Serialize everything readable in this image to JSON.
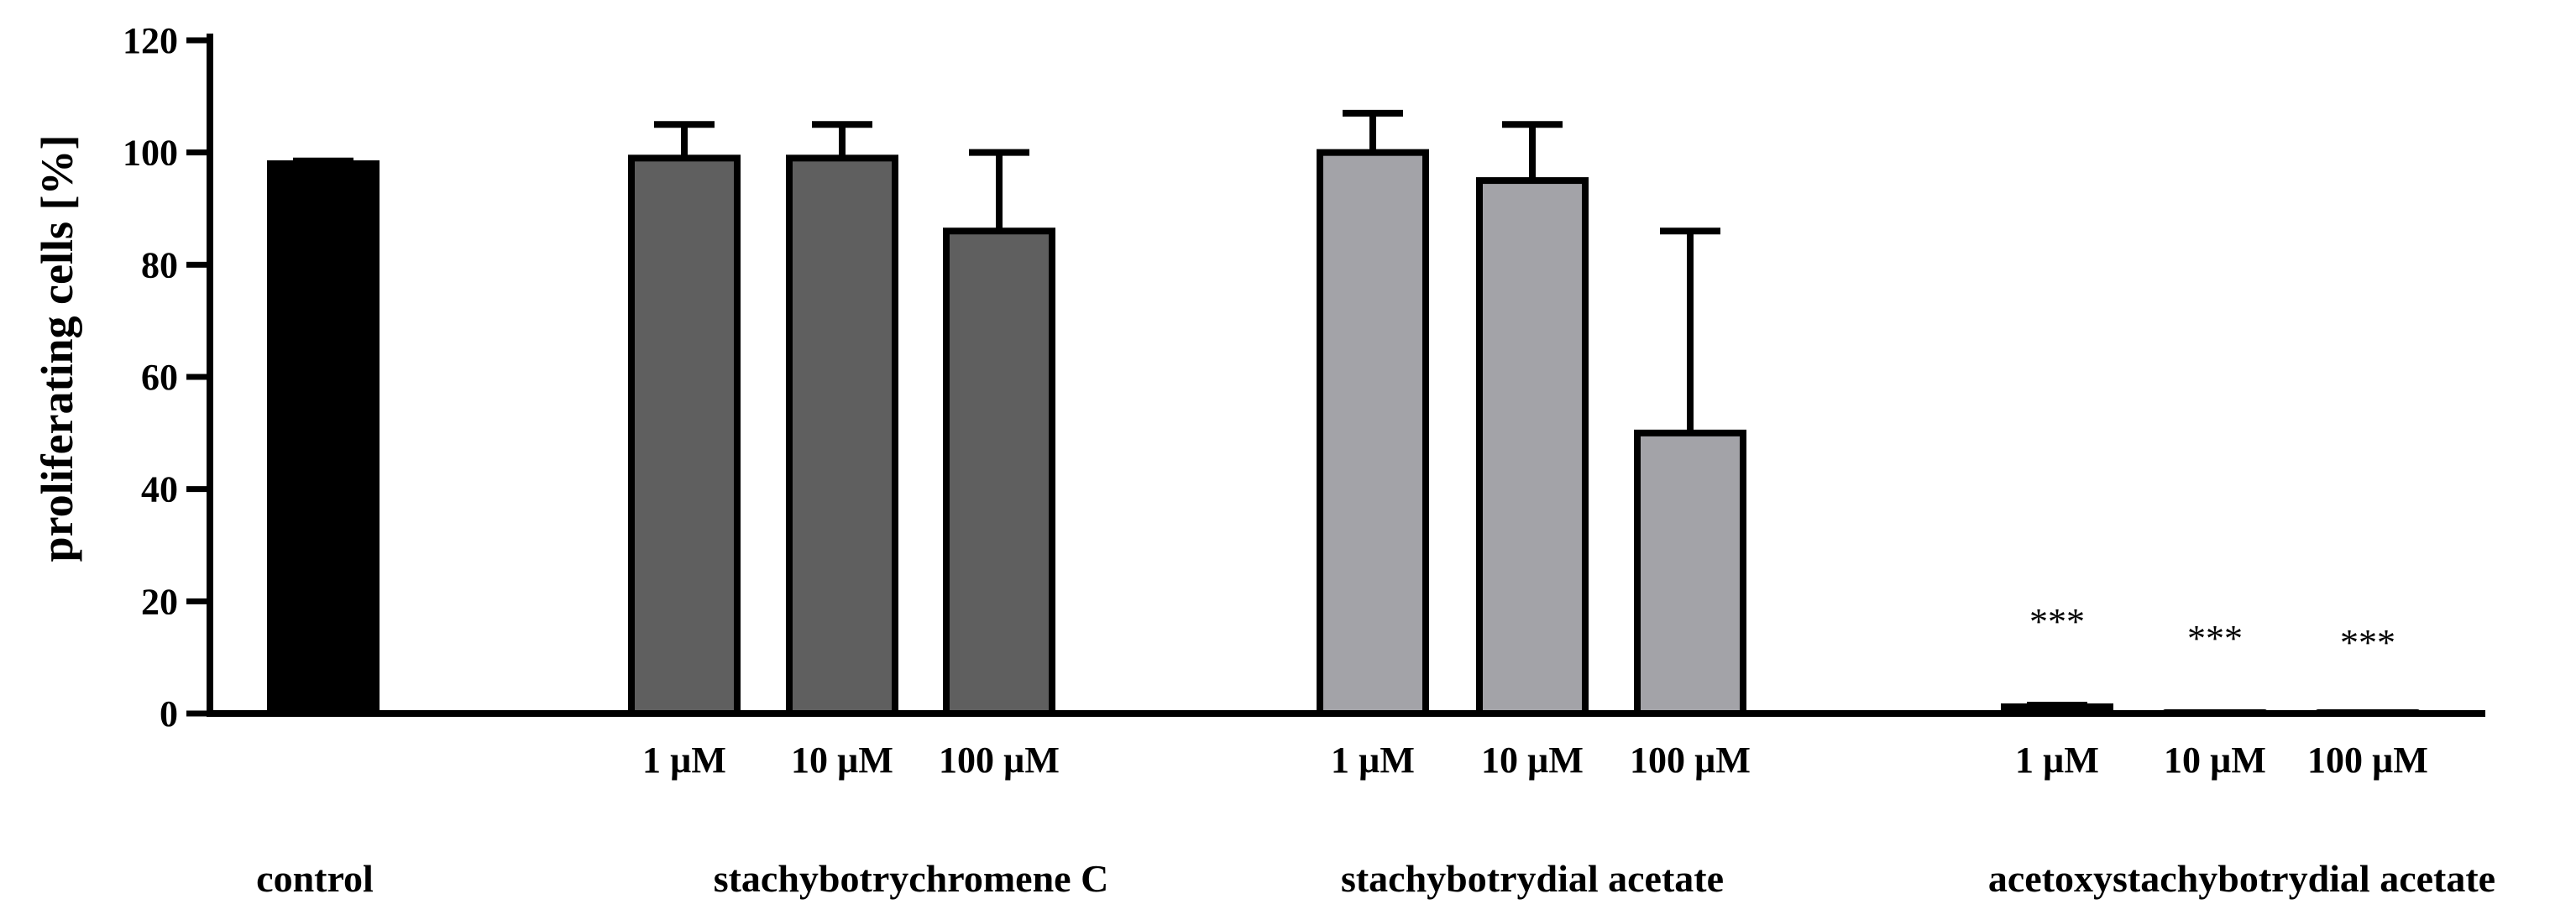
{
  "chart_data": {
    "type": "bar",
    "title": "",
    "xlabel": "",
    "ylabel": "proliferating cells [%]",
    "ylim": [
      0,
      120
    ],
    "yticks": [
      "0",
      "20",
      "40",
      "60",
      "80",
      "100",
      "120"
    ],
    "colors": {
      "control": "#000000",
      "stachybotrychromene_c": "#5f5f5f",
      "stachybotrydial_acetate": "#a3a3a8",
      "acetoxystachybotrydial_acetate": "#000000"
    },
    "groups": [
      {
        "name": "control",
        "color": "#000000",
        "bars": [
          {
            "label": "",
            "value": 98,
            "error": 0.5,
            "annotation": ""
          }
        ]
      },
      {
        "name": "stachybotrychromene C",
        "color": "#5f5f5f",
        "bars": [
          {
            "label": "1 µM",
            "value": 99,
            "error": 6,
            "annotation": ""
          },
          {
            "label": "10 µM",
            "value": 99,
            "error": 6,
            "annotation": ""
          },
          {
            "label": "100 µM",
            "value": 86,
            "error": 14,
            "annotation": ""
          }
        ]
      },
      {
        "name": "stachybotrydial acetate",
        "color": "#a3a3a8",
        "bars": [
          {
            "label": "1 µM",
            "value": 100,
            "error": 7,
            "annotation": ""
          },
          {
            "label": "10 µM",
            "value": 95,
            "error": 10,
            "annotation": ""
          },
          {
            "label": "100 µM",
            "value": 50,
            "error": 36,
            "annotation": ""
          }
        ]
      },
      {
        "name": "acetoxystachybotrydial acetate",
        "color": "#000000",
        "bars": [
          {
            "label": "1 µM",
            "value": 1.2,
            "error": 0.3,
            "annotation": "***"
          },
          {
            "label": "10 µM",
            "value": 0.1,
            "error": 0,
            "annotation": "***"
          },
          {
            "label": "100 µM",
            "value": 0.1,
            "error": 0,
            "annotation": "***"
          }
        ]
      }
    ]
  }
}
